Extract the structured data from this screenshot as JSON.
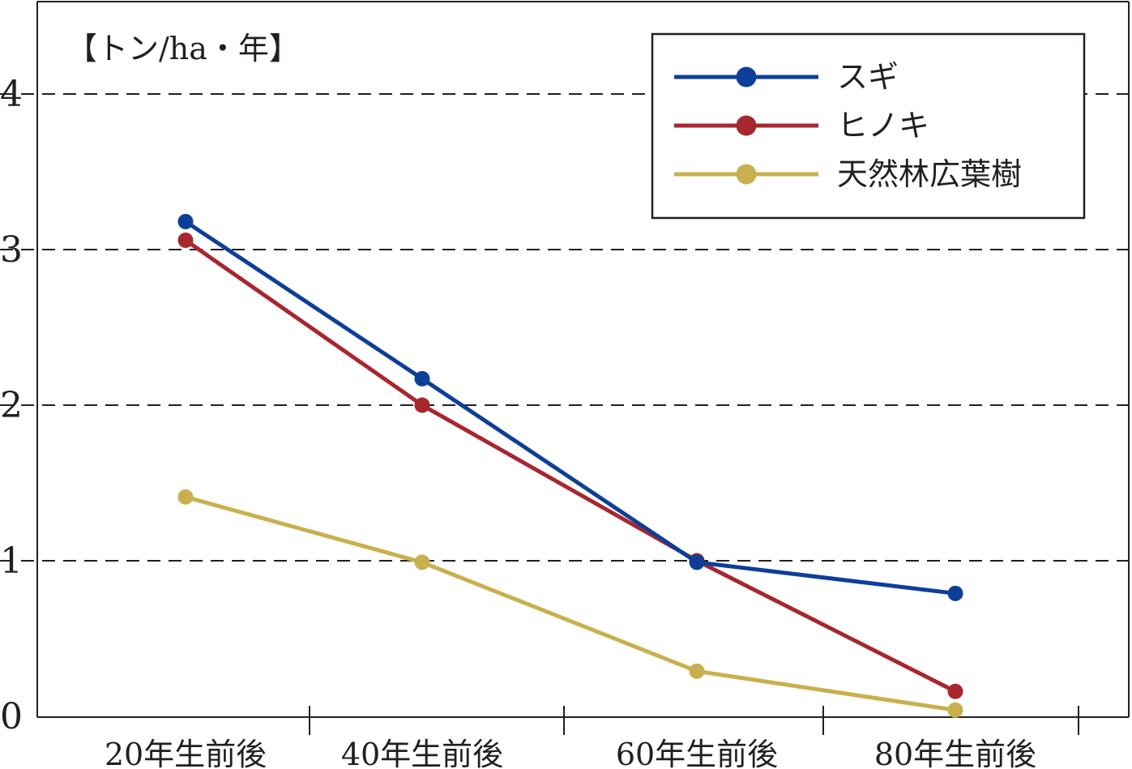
{
  "chart_data": {
    "type": "line",
    "title": "",
    "ylabel": "【トン/ha・年】",
    "xlabel": "",
    "categories": [
      "20年生前後",
      "40年生前後",
      "60年生前後",
      "80年生前後"
    ],
    "ylim": [
      0,
      4.5
    ],
    "yticks": [
      "0",
      "1",
      "2",
      "3",
      "4"
    ],
    "grid": "horizontal dashed",
    "legend_position": "top-right",
    "series": [
      {
        "name": "スギ",
        "color": "#0d3f99",
        "values": [
          3.18,
          2.17,
          0.99,
          0.79
        ]
      },
      {
        "name": "ヒノキ",
        "color": "#a8262e",
        "values": [
          3.06,
          2.0,
          1.0,
          0.16
        ]
      },
      {
        "name": "天然林広葉樹",
        "color": "#c8b04e",
        "values": [
          1.41,
          0.99,
          0.29,
          0.04
        ]
      }
    ]
  }
}
